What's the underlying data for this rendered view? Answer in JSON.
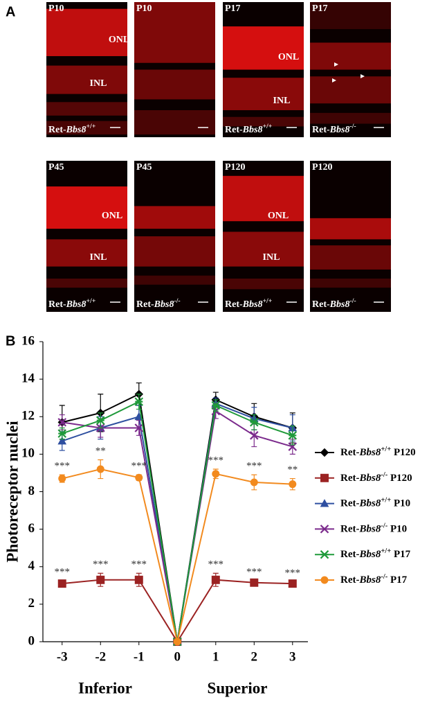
{
  "panel_a": {
    "label": "A",
    "images": [
      {
        "age": "P10",
        "layers": [
          "ONL",
          "INL"
        ],
        "genotype": "Ret-Bbs8+/+"
      },
      {
        "age": "P10"
      },
      {
        "age": "P17",
        "layers": [
          "ONL",
          "INL"
        ],
        "genotype": "Ret-Bbs8+/+"
      },
      {
        "age": "P17",
        "genotype": "Ret-Bbs8-/-"
      },
      {
        "age": "P45",
        "layers": [
          "ONL",
          "INL"
        ],
        "genotype": "Ret-Bbs8+/+"
      },
      {
        "age": "P45",
        "genotype": "Ret-Bbs8-/-"
      },
      {
        "age": "P120",
        "layers": [
          "ONL",
          "INL"
        ],
        "genotype": "Ret-Bbs8+/+"
      },
      {
        "age": "P120",
        "genotype": "Ret-Bbs8-/-"
      }
    ]
  },
  "chart_data": {
    "type": "line",
    "panel_label": "B",
    "ylabel": "Photoreceptor nuclei",
    "region_labels": [
      "Inferior",
      "Superior"
    ],
    "x": [
      -3,
      -2,
      -1,
      0,
      1,
      2,
      3
    ],
    "xlim": [
      -3.5,
      3.4
    ],
    "xticks": [
      -3,
      -2,
      -1,
      0,
      1,
      2,
      3
    ],
    "ylim": [
      0,
      16
    ],
    "yticks": [
      0,
      2,
      4,
      6,
      8,
      10,
      12,
      14,
      16
    ],
    "series": [
      {
        "name": "Ret-Bbs8+/+ P120",
        "color": "#000000",
        "marker": "diamond",
        "values": [
          11.7,
          12.2,
          13.2,
          0,
          12.9,
          12.0,
          11.4
        ],
        "errors": [
          0.9,
          1.0,
          0.6,
          0,
          0.4,
          0.7,
          0.8
        ]
      },
      {
        "name": "Ret-Bbs8-/- P120",
        "color": "#9b2222",
        "marker": "square",
        "values": [
          3.1,
          3.3,
          3.3,
          0,
          3.3,
          3.15,
          3.1
        ],
        "errors": [
          0.15,
          0.35,
          0.35,
          0,
          0.35,
          0.1,
          0.1
        ],
        "annotations": [
          "***",
          "***",
          "***",
          null,
          "***",
          "***",
          "***"
        ]
      },
      {
        "name": "Ret-Bbs8+/+ P10",
        "color": "#2e4fa0",
        "marker": "triangle",
        "values": [
          10.7,
          11.4,
          12.0,
          0,
          12.7,
          11.9,
          11.4
        ],
        "errors": [
          0.5,
          0.6,
          0.6,
          0,
          0.3,
          0.6,
          0.7
        ]
      },
      {
        "name": "Ret-Bbs8-/- P10",
        "color": "#7b2a8c",
        "marker": "x",
        "values": [
          11.7,
          11.4,
          11.4,
          0,
          12.3,
          11.0,
          10.4
        ],
        "errors": [
          0.4,
          0.5,
          0.4,
          0,
          0.4,
          0.6,
          0.4
        ]
      },
      {
        "name": "Ret-Bbs8+/+ P17",
        "color": "#1f9a3a",
        "marker": "star",
        "values": [
          11.1,
          11.8,
          12.8,
          0,
          12.6,
          11.7,
          11.0
        ],
        "errors": [
          0.3,
          0.4,
          0.4,
          0,
          0.3,
          0.4,
          0.5
        ]
      },
      {
        "name": "Ret-Bbs8-/- P17",
        "color": "#f28a1e",
        "marker": "circle",
        "values": [
          8.7,
          9.2,
          8.75,
          0,
          8.95,
          8.5,
          8.4
        ],
        "errors": [
          0.2,
          0.5,
          0.15,
          0,
          0.25,
          0.4,
          0.3
        ],
        "annotations": [
          "***",
          "**",
          "***",
          null,
          "***",
          "***",
          "**"
        ]
      }
    ]
  }
}
